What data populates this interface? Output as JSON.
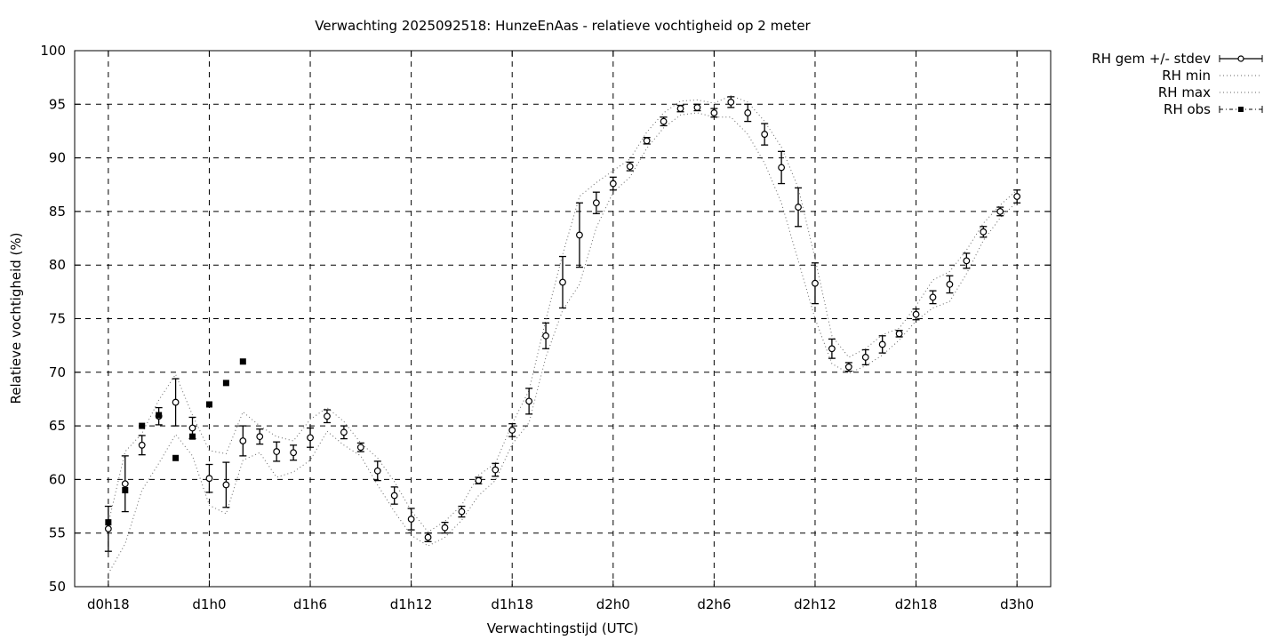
{
  "chart_data": {
    "type": "line",
    "title": "Verwachting 2025092518: HunzeEnAas - relatieve vochtigheid op 2 meter",
    "xlabel": "Verwachtingstijd (UTC)",
    "ylabel": "Relatieve vochtigheid (%)",
    "x_unit": "hours",
    "xlim": [
      -2,
      56
    ],
    "ylim": [
      50,
      100
    ],
    "x_ticks": [
      {
        "x": 0,
        "label": "d0h18"
      },
      {
        "x": 6,
        "label": "d1h0"
      },
      {
        "x": 12,
        "label": "d1h6"
      },
      {
        "x": 18,
        "label": "d1h12"
      },
      {
        "x": 24,
        "label": "d1h18"
      },
      {
        "x": 30,
        "label": "d2h0"
      },
      {
        "x": 36,
        "label": "d2h6"
      },
      {
        "x": 42,
        "label": "d2h12"
      },
      {
        "x": 48,
        "label": "d2h18"
      },
      {
        "x": 54,
        "label": "d3h0"
      }
    ],
    "y_ticks": [
      50,
      55,
      60,
      65,
      70,
      75,
      80,
      85,
      90,
      95,
      100
    ],
    "grid": true,
    "legend_position": "outside-top-right",
    "x": [
      0,
      1,
      2,
      3,
      4,
      5,
      6,
      7,
      8,
      9,
      10,
      11,
      12,
      13,
      14,
      15,
      16,
      17,
      18,
      19,
      20,
      21,
      22,
      23,
      24,
      25,
      26,
      27,
      28,
      29,
      30,
      31,
      32,
      33,
      34,
      35,
      36,
      37,
      38,
      39,
      40,
      41,
      42,
      43,
      44,
      45,
      46,
      47,
      48,
      49,
      50,
      51,
      52,
      53,
      54
    ],
    "series": [
      {
        "name": "RH gem +/- stdev",
        "style": "points-with-errorbars",
        "values": [
          55.4,
          59.6,
          63.2,
          65.9,
          67.2,
          64.8,
          60.1,
          59.5,
          63.6,
          64.0,
          62.6,
          62.5,
          63.9,
          65.9,
          64.4,
          63.0,
          60.8,
          58.5,
          56.3,
          54.6,
          55.5,
          57.0,
          59.9,
          60.9,
          64.6,
          67.3,
          73.4,
          78.4,
          82.8,
          85.8,
          87.6,
          89.2,
          91.6,
          93.4,
          94.6,
          94.7,
          94.2,
          95.2,
          94.2,
          92.2,
          89.1,
          85.4,
          78.3,
          72.2,
          70.5,
          71.4,
          72.6,
          73.6,
          75.4,
          77.0,
          78.2,
          80.4,
          83.1,
          85.0,
          86.4
        ],
        "stdev": [
          2.1,
          2.6,
          0.9,
          0.8,
          2.2,
          1.0,
          1.3,
          2.1,
          1.4,
          0.7,
          0.9,
          0.7,
          0.9,
          0.6,
          0.6,
          0.4,
          0.9,
          0.8,
          1.0,
          0.4,
          0.5,
          0.5,
          0.3,
          0.6,
          0.6,
          1.2,
          1.2,
          2.4,
          3.0,
          1.0,
          0.6,
          0.4,
          0.3,
          0.4,
          0.3,
          0.3,
          0.4,
          0.5,
          0.8,
          1.0,
          1.5,
          1.8,
          1.9,
          0.9,
          0.4,
          0.7,
          0.8,
          0.3,
          0.5,
          0.6,
          0.8,
          0.7,
          0.5,
          0.4,
          0.6
        ]
      },
      {
        "name": "RH min",
        "style": "dotted",
        "values": [
          51.2,
          54.0,
          59.0,
          61.5,
          64.2,
          62.2,
          57.6,
          56.8,
          61.8,
          62.5,
          60.2,
          60.7,
          61.8,
          64.5,
          63.2,
          62.2,
          59.5,
          57.0,
          54.8,
          53.8,
          54.6,
          56.2,
          58.5,
          59.9,
          63.3,
          65.3,
          71.4,
          75.8,
          78.2,
          83.5,
          86.8,
          88.2,
          90.9,
          92.8,
          94.0,
          94.2,
          93.8,
          93.8,
          92.2,
          89.5,
          85.8,
          80.4,
          75.0,
          70.8,
          69.9,
          70.6,
          71.6,
          73.0,
          74.8,
          76.0,
          76.6,
          79.2,
          82.3,
          84.4,
          85.9
        ]
      },
      {
        "name": "RH max",
        "style": "dotted",
        "values": [
          55.9,
          62.6,
          64.3,
          67.4,
          69.8,
          66.0,
          62.7,
          62.4,
          66.3,
          65.0,
          64.0,
          63.6,
          65.6,
          66.7,
          65.4,
          63.4,
          62.0,
          59.8,
          57.1,
          55.1,
          56.1,
          57.6,
          60.4,
          61.5,
          65.2,
          68.3,
          74.9,
          81.0,
          86.4,
          87.7,
          88.8,
          89.9,
          92.4,
          94.2,
          95.3,
          95.4,
          95.1,
          95.8,
          95.2,
          93.4,
          91.0,
          87.2,
          80.6,
          73.4,
          71.4,
          72.2,
          73.5,
          74.1,
          76.2,
          78.6,
          79.4,
          81.4,
          83.9,
          85.6,
          87.0
        ]
      },
      {
        "name": "RH obs",
        "style": "filled-squares",
        "x": [
          0,
          1,
          2,
          3,
          4,
          5,
          6,
          7,
          8
        ],
        "values": [
          56,
          59,
          65,
          66,
          62,
          64,
          67,
          69,
          71
        ]
      }
    ]
  }
}
